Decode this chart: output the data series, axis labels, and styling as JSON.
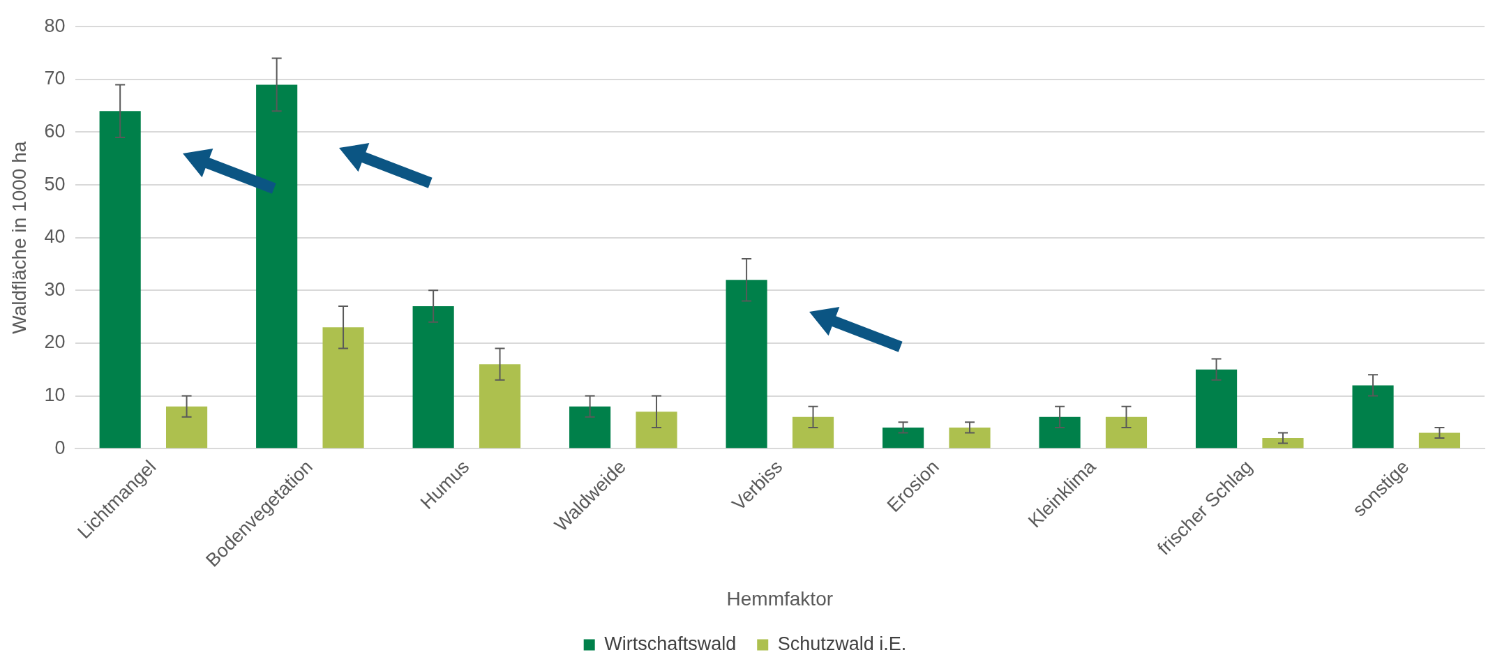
{
  "chart_data": {
    "type": "bar",
    "xlabel": "Hemmfaktor",
    "ylabel": "Waldfläche in 1000 ha",
    "categories": [
      "Lichtmangel",
      "Bodenvegetation",
      "Humus",
      "Waldweide",
      "Verbiss",
      "Erosion",
      "Kleinklima",
      "frischer Schlag",
      "sonstige"
    ],
    "series": [
      {
        "name": "Wirtschaftswald",
        "color": "#00804a",
        "values": [
          64,
          69,
          27,
          8,
          32,
          4,
          6,
          15,
          12
        ],
        "errors": [
          5,
          5,
          3,
          2,
          4,
          1,
          2,
          2,
          2
        ]
      },
      {
        "name": "Schutzwald i.E.",
        "color": "#adc04e",
        "values": [
          8,
          23,
          16,
          7,
          6,
          4,
          6,
          2,
          3
        ],
        "errors": [
          2,
          4,
          3,
          3,
          2,
          1,
          2,
          1,
          1
        ]
      }
    ],
    "ylim": [
      0,
      80
    ],
    "yticks": [
      0,
      10,
      20,
      30,
      40,
      50,
      60,
      70,
      80
    ],
    "grid": "y",
    "legend": "bottom"
  }
}
